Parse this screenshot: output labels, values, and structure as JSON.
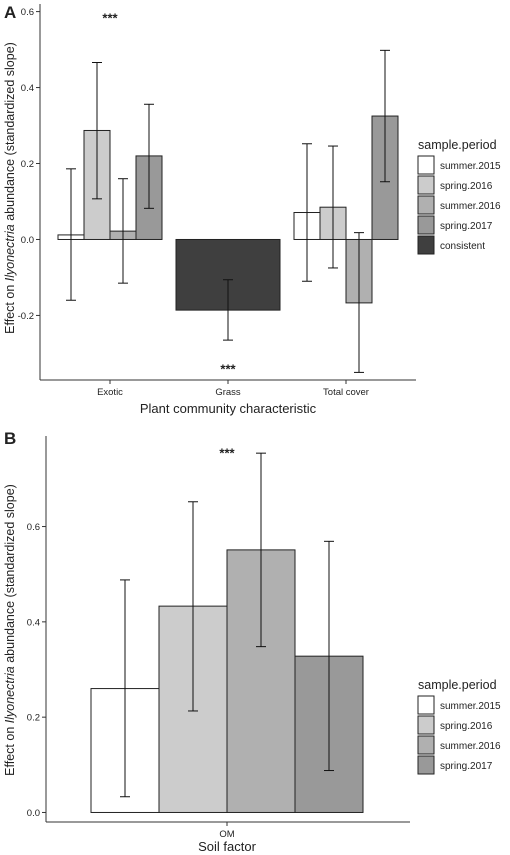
{
  "panels": [
    {
      "panel_label": "A",
      "ylabel_prefix": "Effect on ",
      "ylabel_italic": "Ilyonectria",
      "ylabel_suffix": " abundance (standardized slope)",
      "legend_title": "sample.period",
      "legend_entries": [
        "summer.2015",
        "spring.2016",
        "summer.2016",
        "spring.2017",
        "consistent"
      ]
    },
    {
      "panel_label": "B",
      "ylabel_prefix": "Effect on ",
      "ylabel_italic": "Ilyonectria",
      "ylabel_suffix": " abundance (standardized slope)",
      "legend_title": "sample.period",
      "legend_entries": [
        "summer.2015",
        "spring.2016",
        "summer.2016",
        "spring.2017"
      ]
    }
  ],
  "colors": {
    "summer.2015": "#ffffff",
    "spring.2016": "#cccccc",
    "summer.2016": "#b0b0b0",
    "spring.2017": "#999999",
    "consistent": "#3f3f3f"
  },
  "chart_data": [
    {
      "type": "bar",
      "grouped": true,
      "xlabel": "Plant community characteristic",
      "categories": [
        "Exotic",
        "Grass",
        "Total cover"
      ],
      "ylim": [
        -0.37,
        0.62
      ],
      "yticks": [
        "0.6",
        "0.4",
        "0.2",
        "0.0",
        "-0.2"
      ],
      "ytick_values": [
        0.6,
        0.4,
        0.2,
        0.0,
        -0.2
      ],
      "bars": [
        {
          "category": "Exotic",
          "period": "summer.2015",
          "value": 0.012,
          "lo": -0.16,
          "hi": 0.186
        },
        {
          "category": "Exotic",
          "period": "spring.2016",
          "value": 0.287,
          "lo": 0.107,
          "hi": 0.466
        },
        {
          "category": "Exotic",
          "period": "summer.2016",
          "value": 0.022,
          "lo": -0.115,
          "hi": 0.16
        },
        {
          "category": "Exotic",
          "period": "spring.2017",
          "value": 0.22,
          "lo": 0.082,
          "hi": 0.356
        },
        {
          "category": "Grass",
          "period": "consistent",
          "value": -0.186,
          "lo": -0.265,
          "hi": -0.106
        },
        {
          "category": "Total cover",
          "period": "summer.2015",
          "value": 0.071,
          "lo": -0.11,
          "hi": 0.252
        },
        {
          "category": "Total cover",
          "period": "spring.2016",
          "value": 0.085,
          "lo": -0.075,
          "hi": 0.246
        },
        {
          "category": "Total cover",
          "period": "summer.2016",
          "value": -0.167,
          "lo": -0.35,
          "hi": 0.018
        },
        {
          "category": "Total cover",
          "period": "spring.2017",
          "value": 0.325,
          "lo": 0.152,
          "hi": 0.498
        }
      ],
      "annotations": [
        {
          "text": "***",
          "category": "Exotic",
          "y": 0.585
        },
        {
          "text": "***",
          "category": "Grass",
          "y": -0.34
        }
      ]
    },
    {
      "type": "bar",
      "grouped": true,
      "xlabel": "Soil factor",
      "categories": [
        "OM"
      ],
      "ylim": [
        -0.02,
        0.79
      ],
      "yticks": [
        "0.6",
        "0.4",
        "0.2",
        "0.0"
      ],
      "ytick_values": [
        0.6,
        0.4,
        0.2,
        0.0
      ],
      "bars": [
        {
          "category": "OM",
          "period": "summer.2015",
          "value": 0.26,
          "lo": 0.033,
          "hi": 0.488
        },
        {
          "category": "OM",
          "period": "spring.2016",
          "value": 0.433,
          "lo": 0.213,
          "hi": 0.652
        },
        {
          "category": "OM",
          "period": "summer.2016",
          "value": 0.551,
          "lo": 0.348,
          "hi": 0.754
        },
        {
          "category": "OM",
          "period": "spring.2017",
          "value": 0.328,
          "lo": 0.088,
          "hi": 0.569
        }
      ],
      "annotations": [
        {
          "text": "***",
          "category": "OM",
          "y": 0.755
        }
      ]
    }
  ]
}
